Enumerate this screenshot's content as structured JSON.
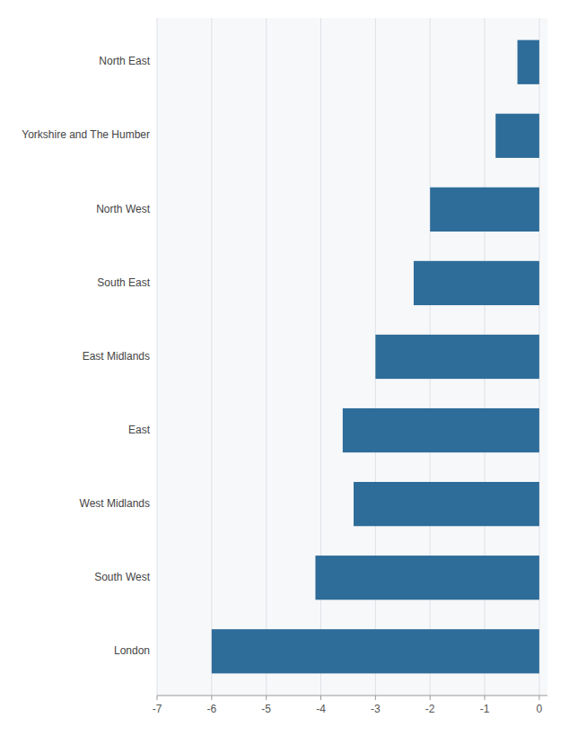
{
  "chart_data": {
    "type": "bar",
    "orientation": "horizontal",
    "categories": [
      "London",
      "South West",
      "West Midlands",
      "East",
      "East Midlands",
      "South East",
      "North West",
      "Yorkshire and The Humber",
      "North East"
    ],
    "values": [
      -6.0,
      -4.1,
      -3.4,
      -3.6,
      -3.0,
      -2.3,
      -2.0,
      -0.8,
      -0.4
    ],
    "color": "#2e6c99",
    "xlim": [
      -7,
      0.15
    ],
    "xticks": [
      -7,
      -6,
      -5,
      -4,
      -3,
      -2,
      -1,
      0
    ],
    "grid": true
  }
}
